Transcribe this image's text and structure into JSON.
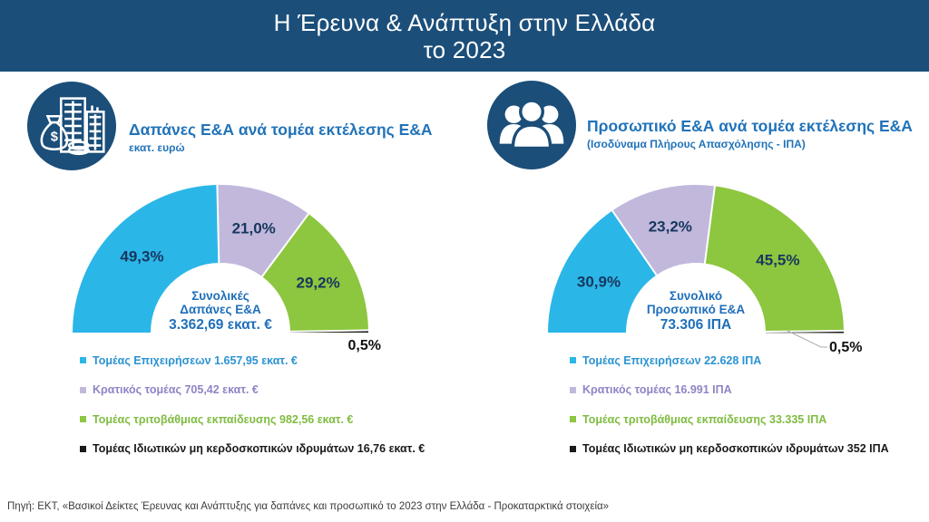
{
  "banner": {
    "title_line1": "Η Έρευνα & Ανάπτυξη στην Ελλάδα",
    "title_line2": "το 2023"
  },
  "panels": [
    {
      "icon": "money-buildings-icon",
      "title": "Δαπάνες Ε&Α ανά τομέα εκτέλεσης Ε&Α",
      "subtitle": "εκατ. ευρώ"
    },
    {
      "icon": "people-group-icon",
      "title": "Προσωπικό Ε&Α ανά τομέα εκτέλεσης Ε&Α",
      "subtitle": "(Ισοδύναμα Πλήρους Απασχόλησης - ΙΠΑ)"
    }
  ],
  "chart_data": [
    {
      "type": "pie",
      "variant": "semicircle-donut",
      "title": "Δαπάνες Ε&Α ανά τομέα εκτέλεσης Ε&Α",
      "unit": "εκατ. ευρώ",
      "categories": [
        "Τομέας Επιχειρήσεων",
        "Κρατικός τομέας",
        "Τομέας τριτοβάθμιας εκπαίδευσης",
        "Τομέας Ιδιωτικών μη κερδοσκοπικών ιδρυμάτων"
      ],
      "values": [
        1657.95,
        705.42,
        982.56,
        16.76
      ],
      "percentages": [
        49.3,
        21.0,
        29.2,
        0.5
      ],
      "pct_labels": [
        "49,3%",
        "21,0%",
        "29,2%",
        "0,5%"
      ],
      "colors": [
        "#2bb6e8",
        "#c1b8dc",
        "#8dc63f",
        "#1a1a1a"
      ],
      "legend_text_colors": [
        "#2b93d1",
        "#8d85c6",
        "#7fbc41",
        "#1a1a1a"
      ],
      "legend_labels": [
        "Τομέας Επιχειρήσεων 1.657,95 εκατ. €",
        "Κρατικός τομέας 705,42 εκατ. €",
        "Τομέας τριτοβάθμιας εκπαίδευσης 982,56 εκατ. €",
        "Τομέας Ιδιωτικών μη κερδοσκοπικών ιδρυμάτων 16,76 εκατ. €"
      ],
      "total_value": 3362.69,
      "center_label": [
        "Συνολικές",
        "Δαπάνες Ε&Α",
        "3.362,69 εκατ. €"
      ],
      "legend_position": "bottom",
      "leader_line": false
    },
    {
      "type": "pie",
      "variant": "semicircle-donut",
      "title": "Προσωπικό Ε&Α ανά τομέα εκτέλεσης Ε&Α",
      "unit": "ΙΠΑ",
      "categories": [
        "Τομέας Επιχειρήσεων",
        "Κρατικός τομέας",
        "Τομέας τριτοβάθμιας εκπαίδευσης",
        "Τομέας Ιδιωτικών μη κερδοσκοπικών ιδρυμάτων"
      ],
      "values": [
        22628,
        16991,
        33335,
        352
      ],
      "percentages": [
        30.9,
        23.2,
        45.5,
        0.5
      ],
      "pct_labels": [
        "30,9%",
        "23,2%",
        "45,5%",
        "0,5%"
      ],
      "colors": [
        "#2bb6e8",
        "#c1b8dc",
        "#8dc63f",
        "#1a1a1a"
      ],
      "legend_text_colors": [
        "#2b93d1",
        "#8d85c6",
        "#7fbc41",
        "#1a1a1a"
      ],
      "legend_labels": [
        "Τομέας Επιχειρήσεων 22.628 ΙΠΑ",
        "Κρατικός τομέας 16.991 ΙΠΑ",
        "Τομέας τριτοβάθμιας εκπαίδευσης 33.335 ΙΠΑ",
        "Τομέας Ιδιωτικών μη κερδοσκοπικών ιδρυμάτων 352 ΙΠΑ"
      ],
      "total_value": 73306,
      "center_label": [
        "Συνολικό",
        "Προσωπικό Ε&Α",
        "73.306 ΙΠΑ"
      ],
      "legend_position": "bottom",
      "leader_line": true
    }
  ],
  "theme": {
    "banner_blue": "#1b4e79",
    "header_blue": "#2173b9",
    "center_text_blue": "#1e6fba",
    "percent_label_navy": "#17375e"
  },
  "footer": {
    "source": "Πηγή: ΕΚΤ, «Βασικοί Δείκτες Έρευνας και Ανάπτυξης για δαπάνες και προσωπικό το 2023 στην Ελλάδα - Προκαταρκτικά στοιχεία»"
  }
}
